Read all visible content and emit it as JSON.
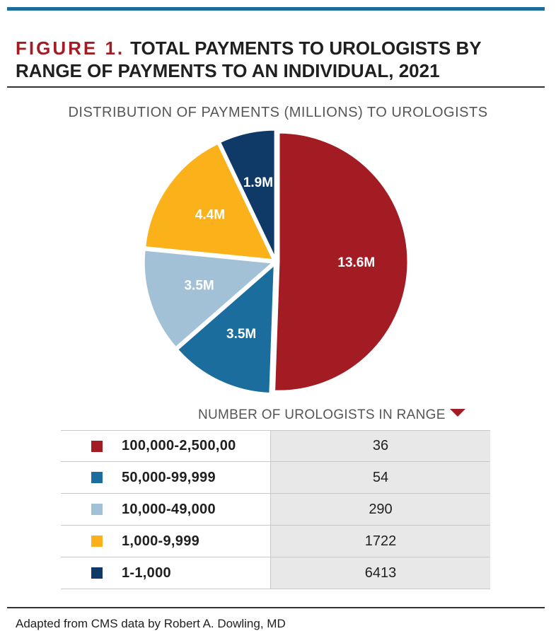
{
  "figure": {
    "label": "FIGURE 1.",
    "title": "TOTAL PAYMENTS TO UROLOGISTS BY RANGE OF PAYMENTS TO AN INDIVIDUAL, 2021",
    "source": "Adapted from CMS data by Robert A. Dowling, MD"
  },
  "chart_data": {
    "type": "pie",
    "title": "DISTRIBUTION OF PAYMENTS (MILLIONS) TO UROLOGISTS",
    "unit": "millions",
    "slices": [
      {
        "label": "100,000-2,500,00",
        "value": 13.6,
        "display": "13.6M",
        "color": "#a31c23"
      },
      {
        "label": "50,000-99,999",
        "value": 3.5,
        "display": "3.5M",
        "color": "#1a6d9c"
      },
      {
        "label": "10,000-49,000",
        "value": 3.5,
        "display": "3.5M",
        "color": "#a3c1d6"
      },
      {
        "label": "1,000-9,999",
        "value": 4.4,
        "display": "4.4M",
        "color": "#fbb21a"
      },
      {
        "label": "1-1,000",
        "value": 1.9,
        "display": "1.9M",
        "color": "#0f3a67"
      }
    ],
    "legend_placement": "bottom"
  },
  "table": {
    "header": "NUMBER OF UROLOGISTS IN RANGE",
    "rows": [
      {
        "range": "100,000-2,500,00",
        "count": "36",
        "color": "#a31c23"
      },
      {
        "range": "50,000-99,999",
        "count": "54",
        "color": "#1a6d9c"
      },
      {
        "range": "10,000-49,000",
        "count": "290",
        "color": "#a3c1d6"
      },
      {
        "range": "1,000-9,999",
        "count": "1722",
        "color": "#fbb21a"
      },
      {
        "range": "1-1,000",
        "count": "6413",
        "color": "#0f3a67"
      }
    ]
  },
  "icons": {
    "header_marker": "triangle-down-icon"
  }
}
